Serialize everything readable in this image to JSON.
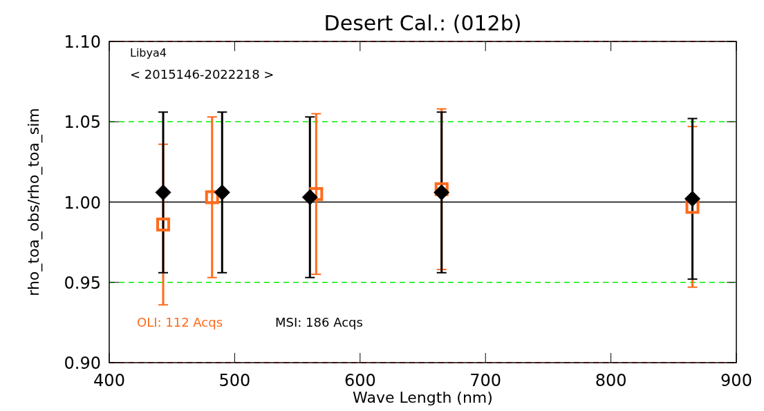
{
  "chart_data": {
    "type": "scatter",
    "title": "Desert Cal.: (012b)",
    "xlabel": "Wave Length (nm)",
    "ylabel": "rho_toa_obs/rho_toa_sim",
    "xlim": [
      400,
      900
    ],
    "xticks": [
      400,
      500,
      600,
      700,
      800,
      900
    ],
    "ylim": [
      0.9,
      1.1
    ],
    "yticks": [
      {
        "value": 0.9,
        "label": "0.90"
      },
      {
        "value": 0.95,
        "label": "0.95"
      },
      {
        "value": 1.0,
        "label": "1.00"
      },
      {
        "value": 1.05,
        "label": "1.05"
      },
      {
        "value": 1.1,
        "label": "1.10"
      }
    ],
    "grid": false,
    "legend": "bottom left",
    "series": [
      {
        "name": "OLI: 112 Acqs",
        "color": "#ff6a1a",
        "marker": "square",
        "x": [
          443,
          482,
          565,
          665,
          865
        ],
        "values": [
          0.986,
          1.003,
          1.005,
          1.008,
          0.997
        ],
        "errors": [
          0.05,
          0.05,
          0.05,
          0.05,
          0.05
        ]
      },
      {
        "name": "MSI: 186 Acqs",
        "color": "#000000",
        "marker": "diamond",
        "x": [
          443,
          490,
          560,
          665,
          865
        ],
        "values": [
          1.006,
          1.006,
          1.003,
          1.006,
          1.002
        ],
        "errors": [
          0.05,
          0.05,
          0.05,
          0.05,
          0.05
        ]
      }
    ],
    "ref_lines": [
      {
        "axis": "y",
        "value": 1.1,
        "color": "#ff0000",
        "line_style": "dashed"
      },
      {
        "axis": "y",
        "value": 1.05,
        "color": "#00ee00",
        "line_style": "dashed"
      },
      {
        "axis": "y",
        "value": 1.0,
        "color": "#000000",
        "line_style": "solid"
      },
      {
        "axis": "y",
        "value": 0.95,
        "color": "#00ee00",
        "line_style": "dashed"
      },
      {
        "axis": "y",
        "value": 0.9,
        "color": "#ff0000",
        "line_style": "dashed"
      }
    ],
    "annotations": [
      "Libya4",
      "< 2015146-2022218 >"
    ]
  }
}
